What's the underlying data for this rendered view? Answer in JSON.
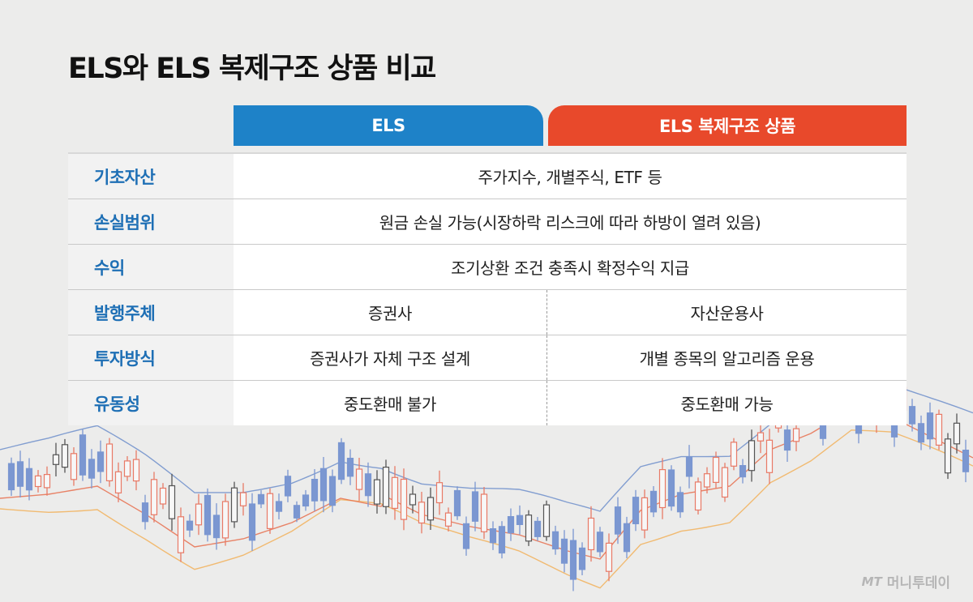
{
  "title": "ELS와 ELS 복제구조 상품 비교",
  "columns": [
    "ELS",
    "ELS 복제구조 상품"
  ],
  "colors": {
    "els": "#1e82c8",
    "replica": "#e8492b",
    "label": "#1e6fb5"
  },
  "rows": [
    {
      "label": "기초자산",
      "merged": "주가지수, 개별주식, ETF 등"
    },
    {
      "label": "손실범위",
      "merged": "원금 손실 가능(시장하락 리스크에 따라 하방이 열려 있음)"
    },
    {
      "label": "수익",
      "merged": "조기상환 조건 충족시 확정수익 지급"
    },
    {
      "label": "발행주체",
      "els": "증권사",
      "replica": "자산운용사"
    },
    {
      "label": "투자방식",
      "els": "증권사가 자체 구조 설계",
      "replica": "개별 종목의 알고리즘 운용"
    },
    {
      "label": "유동성",
      "els": "중도환매 불가",
      "replica": "중도환매 가능"
    }
  ],
  "watermark": {
    "brand_mark": "MT",
    "brand_name": "머니투데이"
  },
  "chart_data": {
    "type": "candlestick",
    "decorative": true,
    "series_colors": {
      "up": "#e87a66",
      "down": "#7b97d1",
      "neutral": "#555555",
      "band_upper": "#6f8fcb",
      "band_lower": "#f2b25c",
      "band_mid": "#e8704f"
    }
  }
}
